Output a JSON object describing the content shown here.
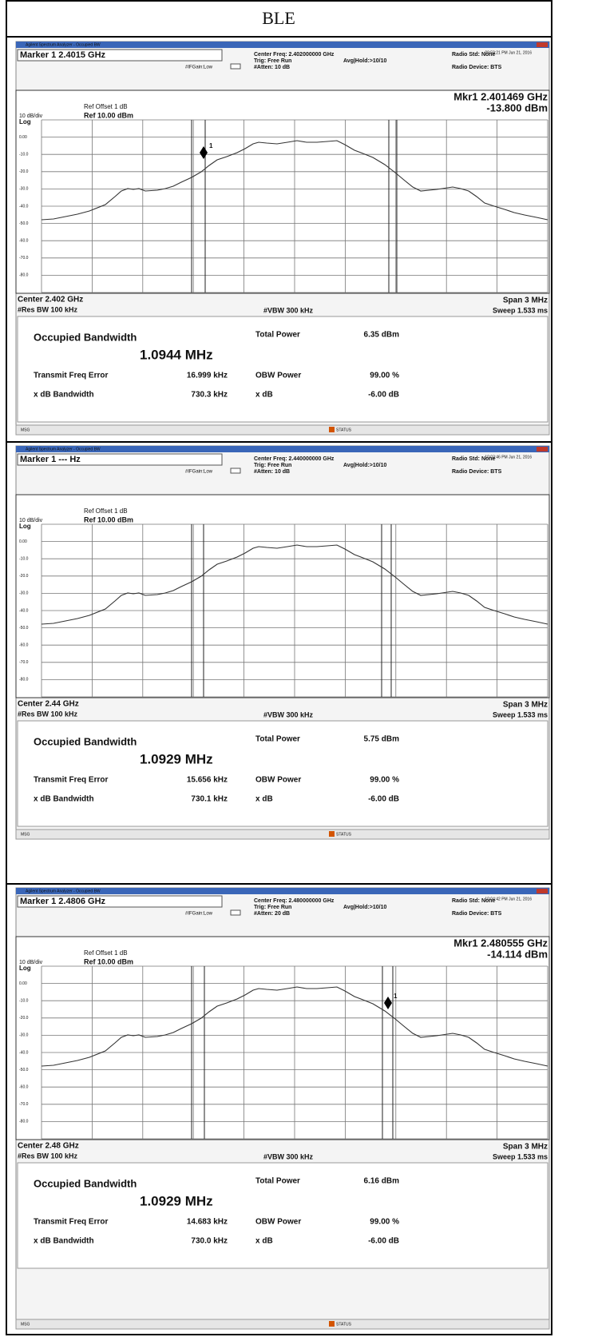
{
  "header": {
    "title": "BLE"
  },
  "panels": [
    {
      "window_title": "Agilent Spectrum Analyzer - Occupied BW",
      "timestamp": "09:59:21 PM Jun 21, 2016",
      "marker_label": "Marker 1 2.4015 GHz",
      "if_gain": "#IFGain:Low",
      "center_freq": "Center Freq: 2.402000000 GHz",
      "trig": "Trig: Free Run",
      "atten": "#Atten: 10 dB",
      "avg_hold": "Avg|Hold:>10/10",
      "radio_std": "Radio Std: None",
      "radio_device": "Radio Device: BTS",
      "mkr_freq": "Mkr1  2.401469 GHz",
      "mkr_level": "-13.800 dBm",
      "marker_number": "1",
      "ref_offset": "Ref Offset 1 dB",
      "scale": "10 dB/div",
      "ref_level": "Ref 10.00 dBm",
      "log": "Log",
      "y_labels": [
        "0.00",
        "-10.0",
        "-20.0",
        "-30.0",
        "-40.0",
        "-50.0",
        "-60.0",
        "-70.0",
        "-80.0"
      ],
      "center": "Center  2.402 GHz",
      "res_bw": "#Res BW  100 kHz",
      "vbw": "#VBW  300 kHz",
      "span": "Span 3 MHz",
      "sweep": "Sweep  1.533 ms",
      "results": {
        "occupied_bandwidth": "Occupied Bandwidth",
        "obw_value": "1.0944 MHz",
        "total_power_label": "Total Power",
        "total_power": "6.35 dBm",
        "freq_error_label": "Transmit Freq Error",
        "freq_error": "16.999 kHz",
        "obw_power_label": "OBW Power",
        "obw_power": "99.00 %",
        "xdb_bw_label": "x dB Bandwidth",
        "xdb_bw": "730.3 kHz",
        "xdb_label": "x dB",
        "xdb": "-6.00 dB"
      },
      "msg": "MSG",
      "status": "STATUS"
    },
    {
      "window_title": "Agilent Spectrum Analyzer - Occupied BW",
      "timestamp": "10:03:46 PM Jun 21, 2016",
      "marker_label": "Marker 1 --- Hz",
      "if_gain": "#IFGain:Low",
      "center_freq": "Center Freq: 2.440000000 GHz",
      "trig": "Trig: Free Run",
      "atten": "#Atten: 10 dB",
      "avg_hold": "Avg|Hold:>10/10",
      "radio_std": "Radio Std: None",
      "radio_device": "Radio Device: BTS",
      "ref_offset": "Ref Offset 1 dB",
      "scale": "10 dB/div",
      "ref_level": "Ref 10.00 dBm",
      "log": "Log",
      "y_labels": [
        "0.00",
        "-10.0",
        "-20.0",
        "-30.0",
        "-40.0",
        "-50.0",
        "-60.0",
        "-70.0",
        "-80.0"
      ],
      "center": "Center  2.44 GHz",
      "res_bw": "#Res BW  100 kHz",
      "vbw": "#VBW  300 kHz",
      "span": "Span 3 MHz",
      "sweep": "Sweep  1.533 ms",
      "results": {
        "occupied_bandwidth": "Occupied Bandwidth",
        "obw_value": "1.0929 MHz",
        "total_power_label": "Total Power",
        "total_power": "5.75 dBm",
        "freq_error_label": "Transmit Freq Error",
        "freq_error": "15.656 kHz",
        "obw_power_label": "OBW Power",
        "obw_power": "99.00 %",
        "xdb_bw_label": "x dB Bandwidth",
        "xdb_bw": "730.1 kHz",
        "xdb_label": "x dB",
        "xdb": "-6.00 dB"
      },
      "msg": "MSG",
      "status": "STATUS"
    },
    {
      "window_title": "Agilent Spectrum Analyzer - Occupied BW",
      "timestamp": "10:04:42 PM Jun 21, 2016",
      "marker_label": "Marker 1 2.4806 GHz",
      "if_gain": "#IFGain:Low",
      "center_freq": "Center Freq: 2.480000000 GHz",
      "trig": "Trig: Free Run",
      "atten": "#Atten: 20 dB",
      "avg_hold": "Avg|Hold:>10/10",
      "radio_std": "Radio Std: None",
      "radio_device": "Radio Device: BTS",
      "mkr_freq": "Mkr1  2.480555 GHz",
      "mkr_level": "-14.114 dBm",
      "marker_number": "1",
      "ref_offset": "Ref Offset 1 dB",
      "scale": "10 dB/div",
      "ref_level": "Ref 10.00 dBm",
      "log": "Log",
      "y_labels": [
        "0.00",
        "-10.0",
        "-20.0",
        "-30.0",
        "-40.0",
        "-50.0",
        "-60.0",
        "-70.0",
        "-80.0"
      ],
      "center": "Center  2.48 GHz",
      "res_bw": "#Res BW  100 kHz",
      "vbw": "#VBW  300 kHz",
      "span": "Span 3 MHz",
      "sweep": "Sweep  1.533 ms",
      "results": {
        "occupied_bandwidth": "Occupied Bandwidth",
        "obw_value": "1.0929 MHz",
        "total_power_label": "Total Power",
        "total_power": "6.16 dBm",
        "freq_error_label": "Transmit Freq Error",
        "freq_error": "14.683 kHz",
        "obw_power_label": "OBW Power",
        "obw_power": "99.00 %",
        "xdb_bw_label": "x dB Bandwidth",
        "xdb_bw": "730.0 kHz",
        "xdb_label": "x dB",
        "xdb": "-6.00 dB"
      },
      "msg": "MSG",
      "status": "STATUS"
    }
  ]
}
